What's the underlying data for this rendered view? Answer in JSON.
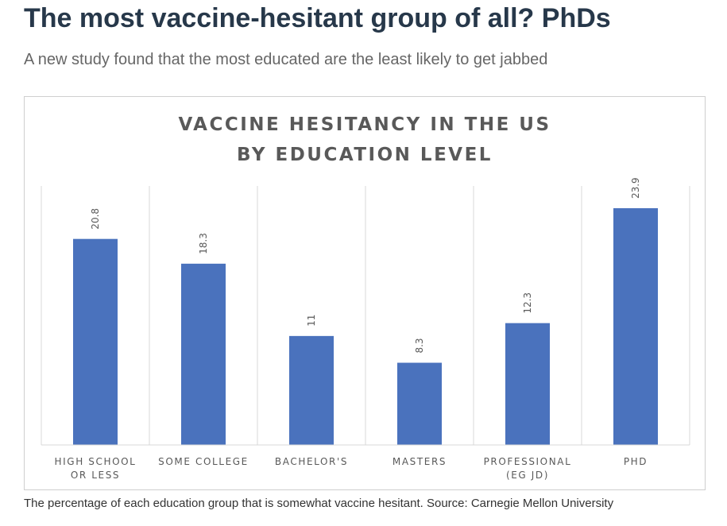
{
  "article": {
    "headline": "The most vaccine-hesitant group of all? PhDs",
    "standfirst": "A new study found that the most educated are the least likely to get jabbed",
    "caption": "The percentage of each education group that is somewhat vaccine hesitant. Source: Carnegie Mellon University"
  },
  "chart_data": {
    "type": "bar",
    "title": [
      "VACCINE HESITANCY IN THE US",
      "BY EDUCATION LEVEL"
    ],
    "categories": [
      [
        "HIGH SCHOOL",
        "OR LESS"
      ],
      [
        "SOME COLLEGE"
      ],
      [
        "BACHELOR'S"
      ],
      [
        "MASTERS"
      ],
      [
        "PROFESSIONAL",
        "(EG JD)"
      ],
      [
        "PHD"
      ]
    ],
    "values": [
      20.8,
      18.3,
      11,
      8.3,
      12.3,
      23.9
    ],
    "value_labels": [
      "20.8",
      "18.3",
      "11",
      "8.3",
      "12.3",
      "23.9"
    ],
    "ylim": [
      0,
      30
    ],
    "grid": false,
    "bar_color": "#4a72bd",
    "separator_color": "#d9d9d9"
  }
}
